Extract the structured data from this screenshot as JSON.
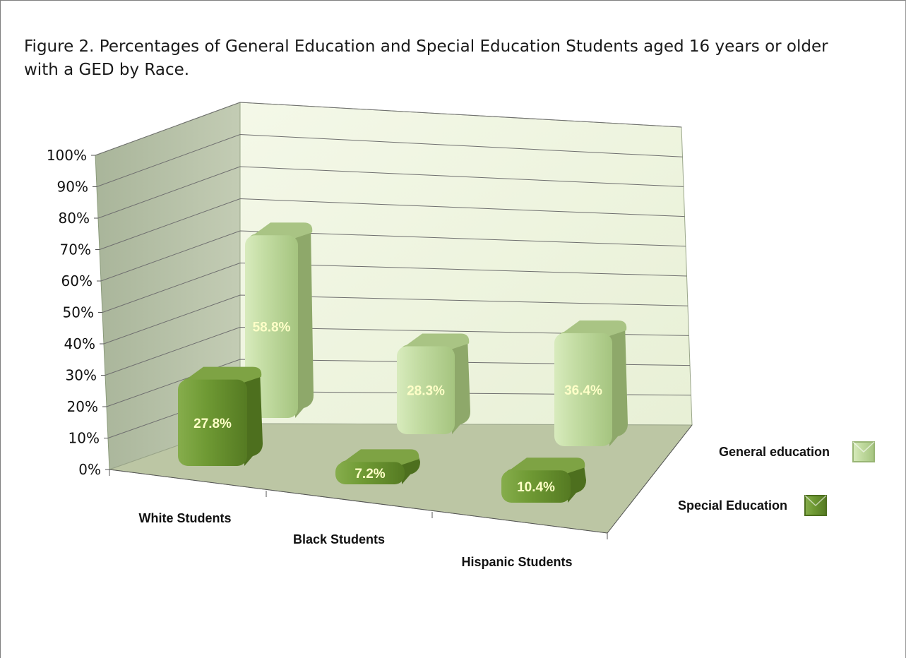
{
  "title": "Figure 2. Percentages of General Education and Special Education Students aged 16 years or older with a GED by Race.",
  "chart_data": {
    "type": "bar",
    "three_d": true,
    "title": "Figure 2. Percentages of General Education and Special Education Students aged 16 years or older with a GED by Race.",
    "categories": [
      "White Students",
      "Black Students",
      "Hispanic Students"
    ],
    "series": [
      {
        "name": "Special Education",
        "values": [
          27.8,
          7.2,
          10.4
        ],
        "labels": [
          "27.8%",
          "7.2%",
          "10.4%"
        ],
        "color": "#6f9a34"
      },
      {
        "name": "General education",
        "values": [
          58.8,
          28.3,
          36.4
        ],
        "labels": [
          "58.8%",
          "28.3%",
          "36.4%"
        ],
        "color": "#c2dca0"
      }
    ],
    "y_ticks": [
      "0%",
      "10%",
      "20%",
      "30%",
      "40%",
      "50%",
      "60%",
      "70%",
      "80%",
      "90%",
      "100%"
    ],
    "ylim": [
      0,
      100
    ],
    "grid": true,
    "legend_position": "right",
    "legend": [
      "General education",
      "Special Education"
    ]
  }
}
